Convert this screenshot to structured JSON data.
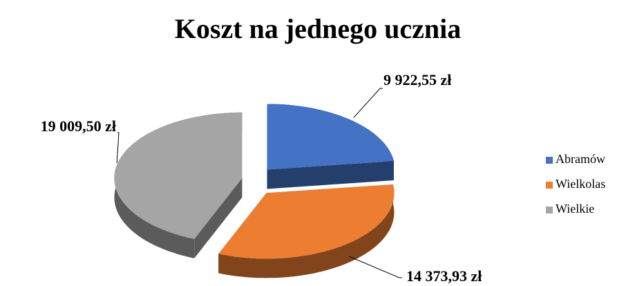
{
  "chart_data": {
    "type": "pie",
    "title": "Koszt na jednego ucznia",
    "categories": [
      "Abramów",
      "Wielkolas",
      "Wielkie"
    ],
    "values": [
      9922.55,
      14373.93,
      19009.5
    ],
    "value_labels": [
      "9 922,55 zł",
      "14 373,93 zł",
      "19 009,50 zł"
    ],
    "colors": [
      "#4472c4",
      "#ed7d31",
      "#a5a5a5"
    ],
    "legend": "right"
  }
}
